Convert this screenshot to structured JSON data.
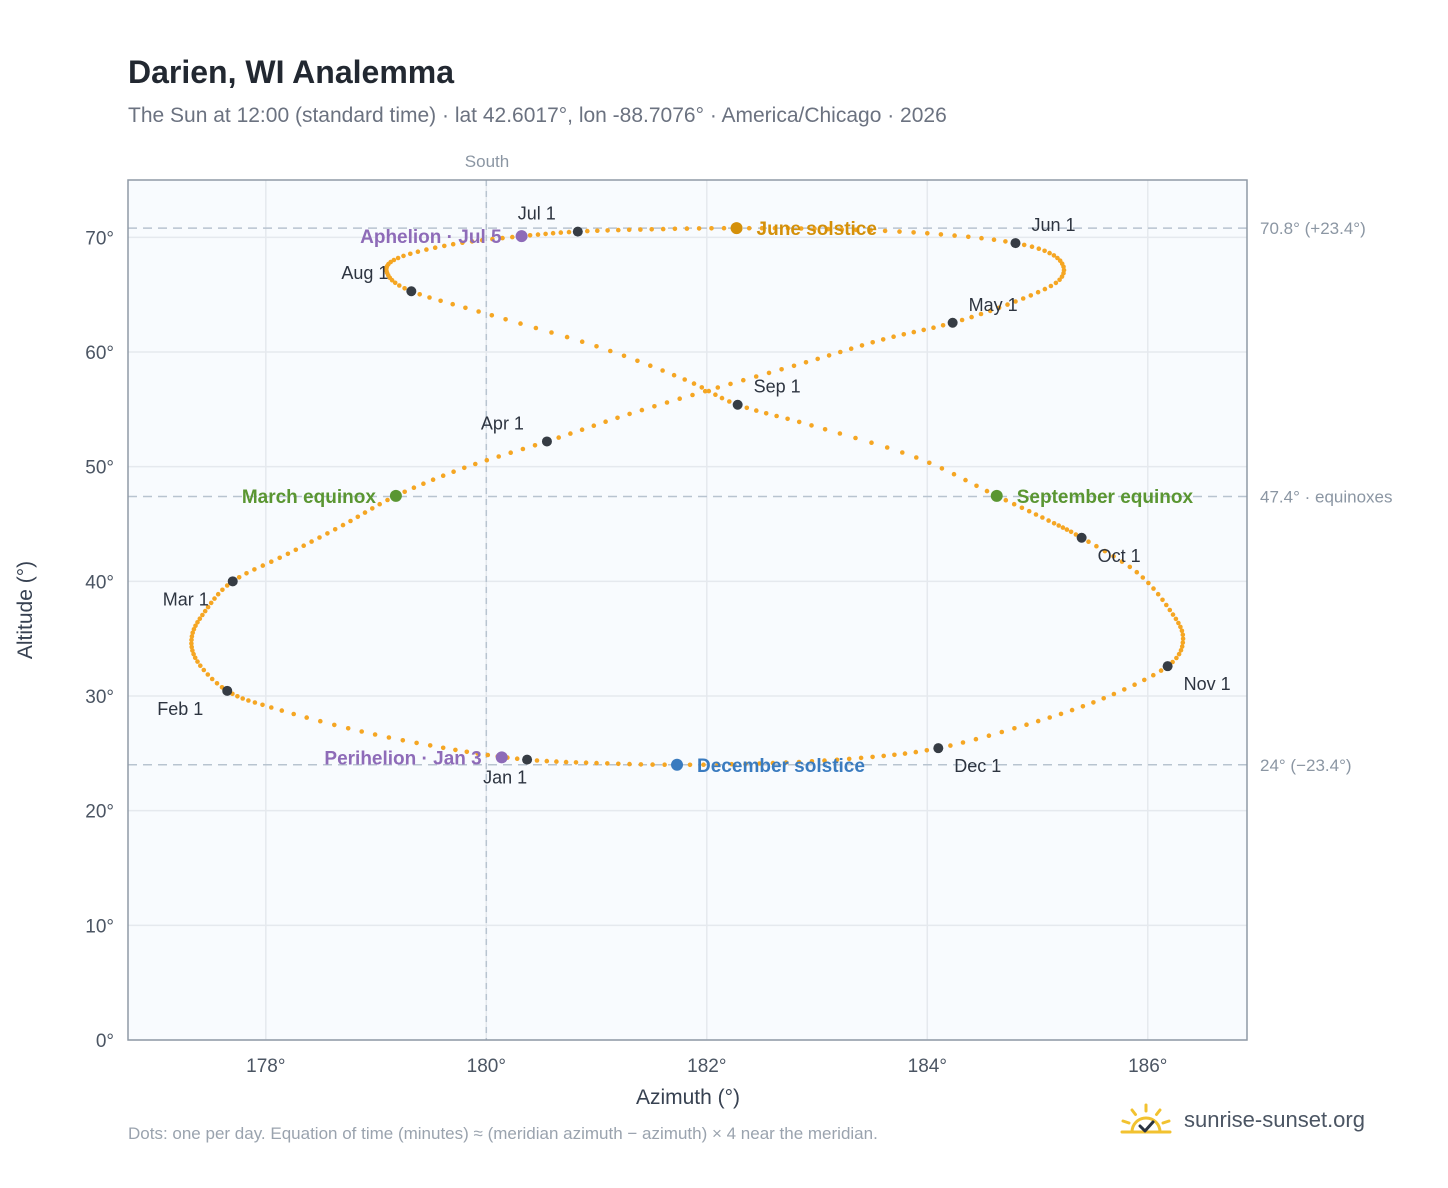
{
  "header": {
    "title": "Darien, WI Analemma",
    "subtitle": "The Sun at 12:00 (standard time) · lat 42.6017°, lon -88.7076° · America/Chicago · 2026"
  },
  "footer": {
    "note": "Dots: one per day. Equation of time (minutes) ≈ (meridian azimuth − azimuth) × 4 near the meridian.",
    "brand": "sunrise-sunset.org"
  },
  "colors": {
    "analemma": "#f5a623",
    "month_marker": "#363c44",
    "june_solstice": "#d4900a",
    "december_solstice": "#3a7bbf",
    "equinox": "#5a9632",
    "apsis": "#8e6bb8",
    "grid": "#e5e9ee",
    "reference": "#b8c4d0",
    "plot_bg": "#f8fbfe",
    "border": "#8f9aa6"
  },
  "chart_data": {
    "type": "scatter",
    "title": "Darien, WI Analemma",
    "xlabel": "Azimuth (°)",
    "ylabel": "Altitude (°)",
    "xlim": [
      176.75,
      186.9
    ],
    "ylim": [
      0,
      75
    ],
    "x_ticks": [
      178,
      180,
      182,
      184,
      186
    ],
    "x_tick_labels": [
      "178°",
      "180°",
      "182°",
      "184°",
      "186°"
    ],
    "y_ticks": [
      0,
      10,
      20,
      30,
      40,
      50,
      60,
      70
    ],
    "y_tick_labels": [
      "0°",
      "10°",
      "20°",
      "30°",
      "40°",
      "50°",
      "60°",
      "70°"
    ],
    "grid": true,
    "meridian": {
      "x": 180,
      "label": "South"
    },
    "reference_lines": [
      {
        "y": 70.8,
        "label": "70.8° (+23.4°)"
      },
      {
        "y": 47.4,
        "label": "47.4° · equinoxes"
      },
      {
        "y": 24.0,
        "label": "24° (−23.4°)"
      }
    ],
    "series": [
      {
        "type": "daily-path",
        "points": [
          [
            180.37,
            24.45
          ],
          [
            179.72,
            25.3
          ],
          [
            178.87,
            26.9
          ],
          [
            178.05,
            29.0
          ],
          [
            177.65,
            30.45
          ],
          [
            177.38,
            33.0
          ],
          [
            177.33,
            35.2
          ],
          [
            177.45,
            37.4
          ],
          [
            177.7,
            40.0
          ],
          [
            178.2,
            42.4
          ],
          [
            178.7,
            44.9
          ],
          [
            179.18,
            47.45
          ],
          [
            179.8,
            49.9
          ],
          [
            180.55,
            52.2
          ],
          [
            181.3,
            54.6
          ],
          [
            182.1,
            56.9
          ],
          [
            182.9,
            59.1
          ],
          [
            183.6,
            61.1
          ],
          [
            184.23,
            62.55
          ],
          [
            184.8,
            64.4
          ],
          [
            185.2,
            66.3
          ],
          [
            185.18,
            68.2
          ],
          [
            184.8,
            69.5
          ],
          [
            184.0,
            70.35
          ],
          [
            183.1,
            70.72
          ],
          [
            182.27,
            70.8
          ],
          [
            181.5,
            70.7
          ],
          [
            180.83,
            70.5
          ],
          [
            180.32,
            70.1
          ],
          [
            179.7,
            69.4
          ],
          [
            179.2,
            68.2
          ],
          [
            179.1,
            66.9
          ],
          [
            179.32,
            65.3
          ],
          [
            180.05,
            63.2
          ],
          [
            181.0,
            60.5
          ],
          [
            181.8,
            57.6
          ],
          [
            182.28,
            55.4
          ],
          [
            182.95,
            53.6
          ],
          [
            183.9,
            50.8
          ],
          [
            184.63,
            47.45
          ],
          [
            185.1,
            45.3
          ],
          [
            185.4,
            43.8
          ],
          [
            185.9,
            40.8
          ],
          [
            186.2,
            37.5
          ],
          [
            186.32,
            35.0
          ],
          [
            186.18,
            32.6
          ],
          [
            185.6,
            29.8
          ],
          [
            184.9,
            27.5
          ],
          [
            184.1,
            25.45
          ],
          [
            183.4,
            24.6
          ],
          [
            182.6,
            24.15
          ],
          [
            181.73,
            24.0
          ],
          [
            181.0,
            24.15
          ],
          [
            180.37,
            24.45
          ]
        ]
      }
    ],
    "month_markers": [
      {
        "label": "Jan 1",
        "x": 180.37,
        "y": 24.45
      },
      {
        "label": "Feb 1",
        "x": 177.65,
        "y": 30.45
      },
      {
        "label": "Mar 1",
        "x": 177.7,
        "y": 40.0
      },
      {
        "label": "Apr 1",
        "x": 180.55,
        "y": 52.2
      },
      {
        "label": "May 1",
        "x": 184.23,
        "y": 62.55
      },
      {
        "label": "Jun 1",
        "x": 184.8,
        "y": 69.5
      },
      {
        "label": "Jul 1",
        "x": 180.83,
        "y": 70.5
      },
      {
        "label": "Aug 1",
        "x": 179.32,
        "y": 65.3
      },
      {
        "label": "Sep 1",
        "x": 182.28,
        "y": 55.4
      },
      {
        "label": "Oct 1",
        "x": 185.4,
        "y": 43.8
      },
      {
        "label": "Nov 1",
        "x": 186.18,
        "y": 32.6
      },
      {
        "label": "Dec 1",
        "x": 184.1,
        "y": 25.45
      }
    ],
    "events": [
      {
        "label": "June solstice",
        "x": 182.27,
        "y": 70.8,
        "color": "#d4900a",
        "side": "right"
      },
      {
        "label": "December solstice",
        "x": 181.73,
        "y": 24.0,
        "color": "#3a7bbf",
        "side": "right"
      },
      {
        "label": "March equinox",
        "x": 179.18,
        "y": 47.45,
        "color": "#5a9632",
        "side": "left"
      },
      {
        "label": "September equinox",
        "x": 184.63,
        "y": 47.45,
        "color": "#5a9632",
        "side": "right"
      },
      {
        "label": "Aphelion · Jul 5",
        "x": 180.32,
        "y": 70.1,
        "color": "#8e6bb8",
        "side": "left"
      },
      {
        "label": "Perihelion · Jan 3",
        "x": 180.14,
        "y": 24.65,
        "color": "#8e6bb8",
        "side": "left"
      }
    ]
  }
}
